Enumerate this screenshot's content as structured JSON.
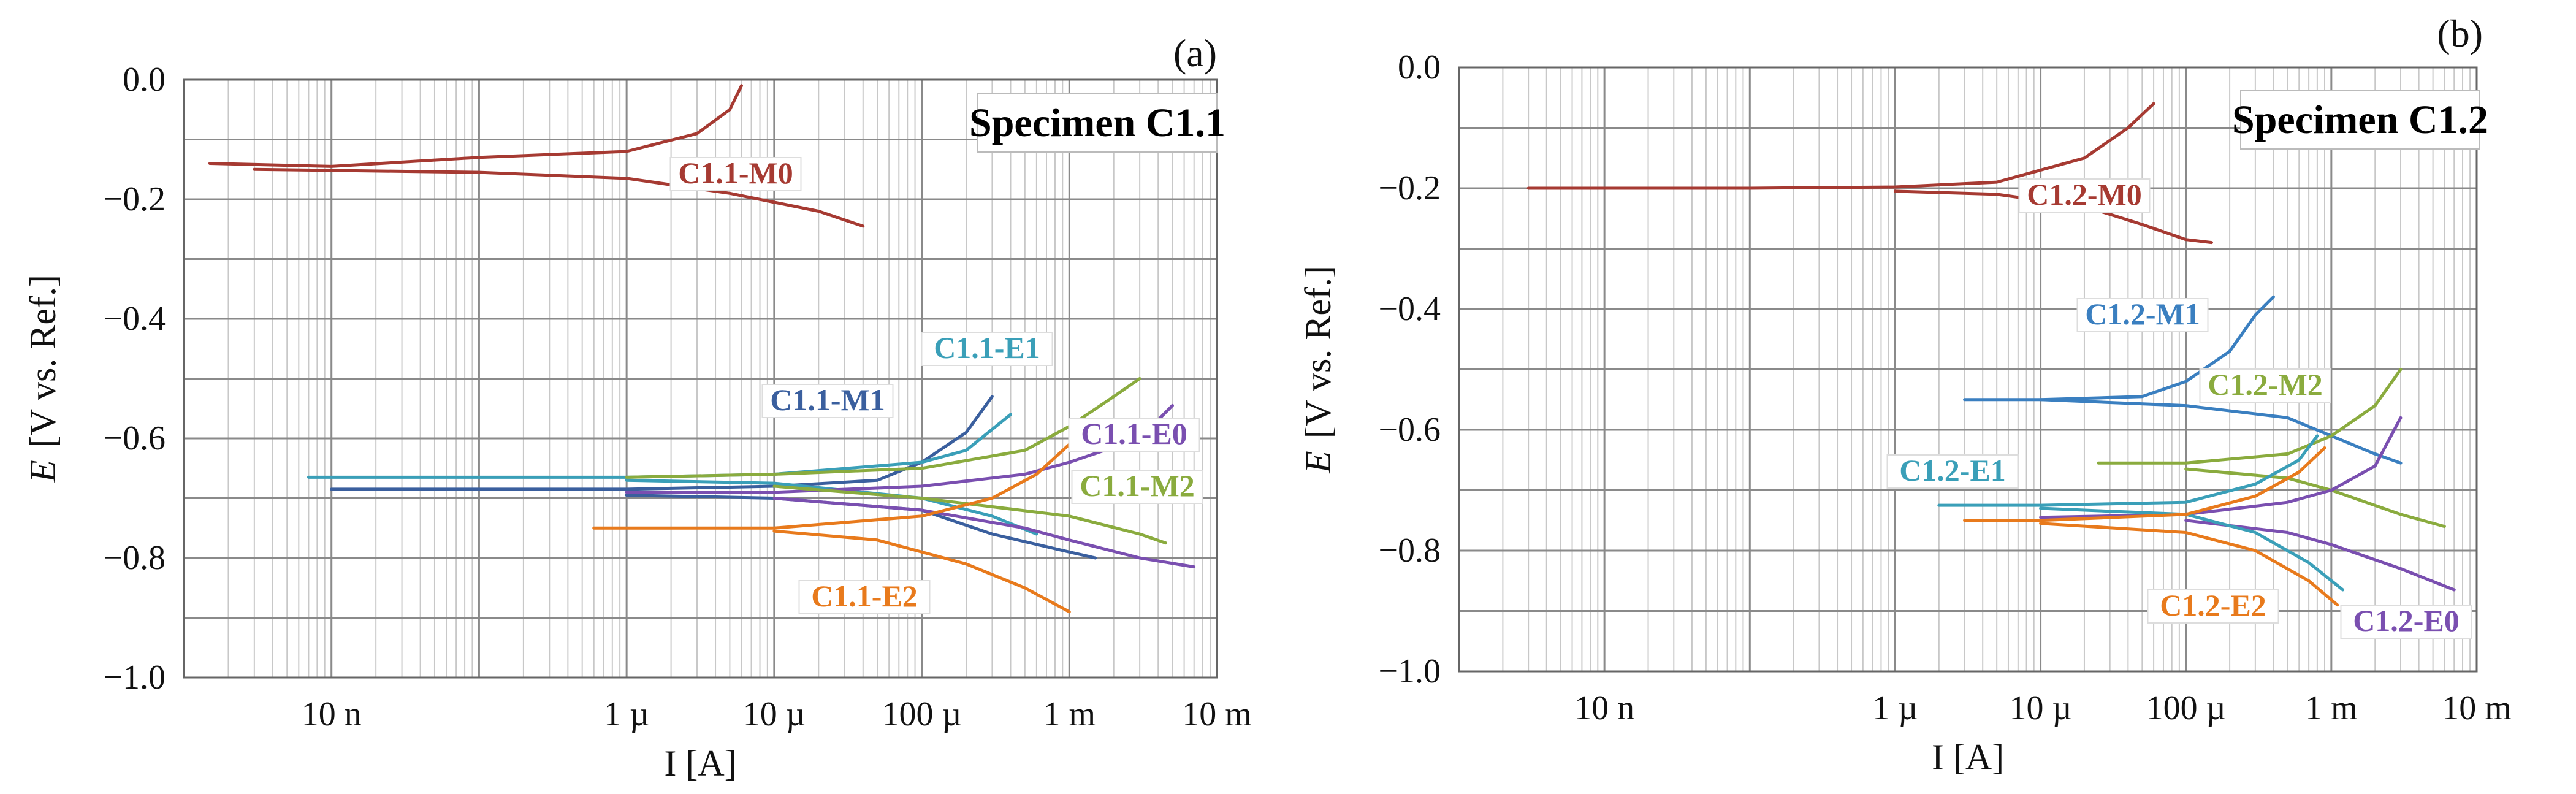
{
  "chart_data": [
    {
      "type": "line",
      "panel": "(a)",
      "title": "Specimen C1.1",
      "xlabel": "I [A]",
      "ylabel_italic": "E",
      "ylabel_rest": "[V vs. Ref.]",
      "xscale": "log",
      "xlim": [
        1e-09,
        0.01
      ],
      "ylim": [
        -1.0,
        0.0
      ],
      "yticks": [
        0.0,
        -0.2,
        -0.4,
        -0.6,
        -0.8,
        -1.0
      ],
      "ytick_labels": [
        "0.0",
        "−0.2",
        "−0.4",
        "−0.6",
        "−0.8",
        "−1.0"
      ],
      "xticks": [
        1e-08,
        1e-06,
        1e-05,
        0.0001,
        0.001,
        0.01
      ],
      "xtick_labels": [
        "10 n",
        "1 µ",
        "10 µ",
        "100 µ",
        "1 m",
        "10 m"
      ],
      "grid": true,
      "series": [
        {
          "name": "C1.1-M0",
          "color": "#a63a32",
          "anodic": [
            [
              1.5e-09,
              -0.14
            ],
            [
              1e-08,
              -0.145
            ],
            [
              1e-07,
              -0.13
            ],
            [
              1e-06,
              -0.12
            ],
            [
              3e-06,
              -0.09
            ],
            [
              5e-06,
              -0.05
            ],
            [
              6e-06,
              -0.01
            ]
          ],
          "cathodic": [
            [
              3e-09,
              -0.15
            ],
            [
              1e-07,
              -0.155
            ],
            [
              1e-06,
              -0.165
            ],
            [
              5e-06,
              -0.19
            ],
            [
              2e-05,
              -0.22
            ],
            [
              4e-05,
              -0.245
            ]
          ]
        },
        {
          "name": "C1.1-M1",
          "color": "#3a5f9e",
          "anodic": [
            [
              1e-08,
              -0.685
            ],
            [
              1e-06,
              -0.685
            ],
            [
              1e-05,
              -0.68
            ],
            [
              5e-05,
              -0.67
            ],
            [
              0.0001,
              -0.64
            ],
            [
              0.0002,
              -0.59
            ],
            [
              0.0003,
              -0.53
            ]
          ],
          "cathodic": [
            [
              1e-06,
              -0.695
            ],
            [
              1e-05,
              -0.7
            ],
            [
              0.0001,
              -0.72
            ],
            [
              0.0003,
              -0.76
            ],
            [
              0.001,
              -0.79
            ],
            [
              0.0015,
              -0.8
            ]
          ]
        },
        {
          "name": "C1.1-E1",
          "color": "#3a9fb8",
          "anodic": [
            [
              7e-09,
              -0.665
            ],
            [
              1e-06,
              -0.665
            ],
            [
              1e-05,
              -0.66
            ],
            [
              0.0001,
              -0.64
            ],
            [
              0.0002,
              -0.62
            ],
            [
              0.0004,
              -0.56
            ]
          ],
          "cathodic": [
            [
              1e-06,
              -0.67
            ],
            [
              1e-05,
              -0.675
            ],
            [
              0.0001,
              -0.7
            ],
            [
              0.0003,
              -0.73
            ],
            [
              0.0006,
              -0.76
            ]
          ]
        },
        {
          "name": "C1.1-E0",
          "color": "#7a4fb0",
          "anodic": [
            [
              1e-06,
              -0.69
            ],
            [
              1e-05,
              -0.69
            ],
            [
              0.0001,
              -0.68
            ],
            [
              0.0005,
              -0.66
            ],
            [
              0.001,
              -0.64
            ],
            [
              0.003,
              -0.6
            ],
            [
              0.005,
              -0.545
            ]
          ],
          "cathodic": [
            [
              1e-05,
              -0.7
            ],
            [
              0.0001,
              -0.72
            ],
            [
              0.0005,
              -0.75
            ],
            [
              0.001,
              -0.77
            ],
            [
              0.003,
              -0.8
            ],
            [
              0.007,
              -0.815
            ]
          ]
        },
        {
          "name": "C1.1-M2",
          "color": "#8aab3e",
          "anodic": [
            [
              1e-06,
              -0.665
            ],
            [
              1e-05,
              -0.66
            ],
            [
              0.0001,
              -0.65
            ],
            [
              0.0005,
              -0.62
            ],
            [
              0.001,
              -0.58
            ],
            [
              0.002,
              -0.53
            ],
            [
              0.003,
              -0.5
            ]
          ],
          "cathodic": [
            [
              1e-05,
              -0.68
            ],
            [
              0.0001,
              -0.7
            ],
            [
              0.001,
              -0.73
            ],
            [
              0.003,
              -0.76
            ],
            [
              0.0045,
              -0.775
            ]
          ]
        },
        {
          "name": "C1.1-E2",
          "color": "#e87a1c",
          "anodic": [
            [
              6e-07,
              -0.75
            ],
            [
              1e-05,
              -0.75
            ],
            [
              0.0001,
              -0.73
            ],
            [
              0.0003,
              -0.7
            ],
            [
              0.0006,
              -0.66
            ],
            [
              0.001,
              -0.61
            ]
          ],
          "cathodic": [
            [
              1e-05,
              -0.755
            ],
            [
              5e-05,
              -0.77
            ],
            [
              0.0002,
              -0.81
            ],
            [
              0.0005,
              -0.85
            ],
            [
              0.001,
              -0.89
            ]
          ]
        }
      ]
    },
    {
      "type": "line",
      "panel": "(b)",
      "title": "Specimen C1.2",
      "xlabel": "I [A]",
      "ylabel_italic": "E",
      "ylabel_rest": "[V vs. Ref.]",
      "xscale": "log",
      "xlim": [
        1e-09,
        0.01
      ],
      "ylim": [
        -1.0,
        0.0
      ],
      "yticks": [
        0.0,
        -0.2,
        -0.4,
        -0.6,
        -0.8,
        -1.0
      ],
      "ytick_labels": [
        "0.0",
        "−0.2",
        "−0.4",
        "−0.6",
        "−0.8",
        "−1.0"
      ],
      "xticks": [
        1e-08,
        1e-06,
        1e-05,
        0.0001,
        0.001,
        0.01
      ],
      "xtick_labels": [
        "10 n",
        "1 µ",
        "10 µ",
        "100 µ",
        "1 m",
        "10 m"
      ],
      "grid": true,
      "series": [
        {
          "name": "C1.2-M0",
          "color": "#a63a32",
          "anodic": [
            [
              3e-09,
              -0.2
            ],
            [
              1e-07,
              -0.2
            ],
            [
              1e-06,
              -0.198
            ],
            [
              5e-06,
              -0.19
            ],
            [
              2e-05,
              -0.15
            ],
            [
              4e-05,
              -0.1
            ],
            [
              6e-05,
              -0.06
            ]
          ],
          "cathodic": [
            [
              1e-06,
              -0.205
            ],
            [
              5e-06,
              -0.21
            ],
            [
              2e-05,
              -0.23
            ],
            [
              5e-05,
              -0.26
            ],
            [
              0.0001,
              -0.285
            ],
            [
              0.00015,
              -0.29
            ]
          ]
        },
        {
          "name": "C1.2-M1",
          "color": "#3a7fc0",
          "anodic": [
            [
              3e-06,
              -0.55
            ],
            [
              1e-05,
              -0.55
            ],
            [
              5e-05,
              -0.545
            ],
            [
              0.0001,
              -0.52
            ],
            [
              0.0002,
              -0.47
            ],
            [
              0.0003,
              -0.41
            ],
            [
              0.0004,
              -0.38
            ]
          ],
          "cathodic": [
            [
              1e-05,
              -0.55
            ],
            [
              0.0001,
              -0.56
            ],
            [
              0.0005,
              -0.58
            ],
            [
              0.001,
              -0.61
            ],
            [
              0.002,
              -0.64
            ],
            [
              0.003,
              -0.655
            ]
          ]
        },
        {
          "name": "C1.2-M2",
          "color": "#8aab3e",
          "anodic": [
            [
              2.5e-05,
              -0.655
            ],
            [
              0.0001,
              -0.655
            ],
            [
              0.0005,
              -0.64
            ],
            [
              0.001,
              -0.61
            ],
            [
              0.002,
              -0.56
            ],
            [
              0.003,
              -0.5
            ]
          ],
          "cathodic": [
            [
              0.0001,
              -0.665
            ],
            [
              0.0005,
              -0.68
            ],
            [
              0.001,
              -0.7
            ],
            [
              0.003,
              -0.74
            ],
            [
              0.006,
              -0.76
            ]
          ]
        },
        {
          "name": "C1.2-E0",
          "color": "#7a4fb0",
          "anodic": [
            [
              1e-05,
              -0.745
            ],
            [
              0.0001,
              -0.74
            ],
            [
              0.0005,
              -0.72
            ],
            [
              0.001,
              -0.7
            ],
            [
              0.002,
              -0.66
            ],
            [
              0.003,
              -0.58
            ]
          ],
          "cathodic": [
            [
              0.0001,
              -0.75
            ],
            [
              0.0005,
              -0.77
            ],
            [
              0.001,
              -0.79
            ],
            [
              0.003,
              -0.83
            ],
            [
              0.007,
              -0.865
            ]
          ]
        },
        {
          "name": "C1.2-E1",
          "color": "#3a9fb8",
          "anodic": [
            [
              2e-06,
              -0.725
            ],
            [
              1e-05,
              -0.725
            ],
            [
              0.0001,
              -0.72
            ],
            [
              0.0003,
              -0.69
            ],
            [
              0.0006,
              -0.65
            ],
            [
              0.0008,
              -0.61
            ]
          ],
          "cathodic": [
            [
              1e-05,
              -0.73
            ],
            [
              0.0001,
              -0.74
            ],
            [
              0.0003,
              -0.77
            ],
            [
              0.0007,
              -0.82
            ],
            [
              0.0012,
              -0.865
            ]
          ]
        },
        {
          "name": "C1.2-E2",
          "color": "#e87a1c",
          "anodic": [
            [
              3e-06,
              -0.75
            ],
            [
              1e-05,
              -0.75
            ],
            [
              0.0001,
              -0.74
            ],
            [
              0.0003,
              -0.71
            ],
            [
              0.0006,
              -0.67
            ],
            [
              0.0009,
              -0.63
            ]
          ],
          "cathodic": [
            [
              1e-05,
              -0.755
            ],
            [
              0.0001,
              -0.77
            ],
            [
              0.0003,
              -0.8
            ],
            [
              0.0007,
              -0.85
            ],
            [
              0.0011,
              -0.89
            ]
          ]
        }
      ]
    }
  ]
}
